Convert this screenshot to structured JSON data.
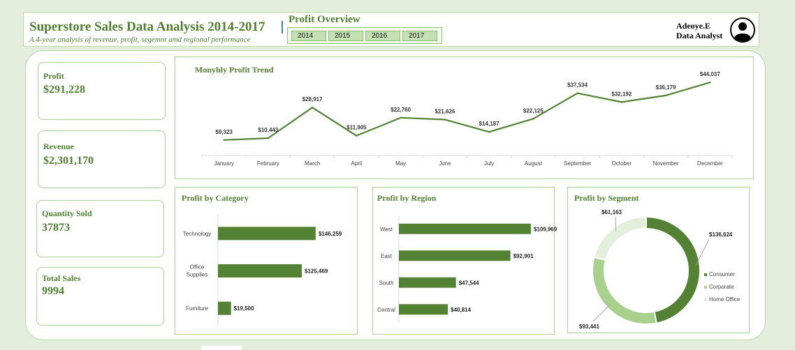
{
  "header": {
    "title": "Superstore Sales Data Analysis 2014-2017",
    "subtitle": "A 4-year analysis of revenue, profit, segemnt amd regional performance",
    "overview_title": "Profit Overview",
    "year_tabs": [
      "2014",
      "2015",
      "2016",
      "2017"
    ],
    "analyst_name": "Adeoye.E",
    "analyst_role": "Data Analyst",
    "avatar_icon": "user-avatar-icon"
  },
  "kpis": [
    {
      "label": "Profit",
      "value": "$291,228"
    },
    {
      "label": "Revenue",
      "value": "$2,301,170"
    },
    {
      "label": "Quantity Sold",
      "value": "37873"
    },
    {
      "label": "Total Sales",
      "value": "9994"
    }
  ],
  "colors": {
    "accent": "#548235",
    "light_green": "#a9d18e",
    "pale_green": "#e2efda",
    "background": "#e3efdc"
  },
  "chart_data": [
    {
      "type": "line",
      "title": "Monyhly Profit Trend",
      "categories": [
        "January",
        "February",
        "March",
        "April",
        "May",
        "June",
        "July",
        "August",
        "September",
        "October",
        "November",
        "December"
      ],
      "values": [
        9323,
        10443,
        28917,
        11905,
        22760,
        21626,
        14187,
        22125,
        37534,
        32192,
        36179,
        44037
      ],
      "data_labels": [
        "$9,323",
        "$10,443",
        "$28,917",
        "$11,905",
        "$22,760",
        "$21,626",
        "$14,187",
        "$22,125",
        "$37,534",
        "$32,192",
        "$36,179",
        "$44,037"
      ],
      "ylim": [
        0,
        50000
      ],
      "grid": false,
      "legend": "none"
    },
    {
      "type": "bar",
      "orientation": "horizontal",
      "title": "Profit by Category",
      "categories": [
        "Technology",
        "Office Supplies",
        "Furniture"
      ],
      "values": [
        146259,
        125469,
        19500
      ],
      "data_labels": [
        "$146,259",
        "$125,469",
        "$19,500"
      ],
      "xlim": [
        0,
        160000
      ]
    },
    {
      "type": "bar",
      "orientation": "horizontal",
      "title": "Profit by Region",
      "categories": [
        "West",
        "East",
        "South",
        "Central"
      ],
      "values": [
        109969,
        92901,
        47544,
        40814
      ],
      "data_labels": [
        "$109,969",
        "$92,901",
        "$47,544",
        "$40,814"
      ],
      "xlim": [
        0,
        110000
      ]
    },
    {
      "type": "pie",
      "variant": "donut",
      "title": "Profit by Segment",
      "categories": [
        "Consumer",
        "Corporate",
        "Home Office"
      ],
      "values": [
        136624,
        93441,
        61163
      ],
      "data_labels": [
        "$136,624",
        "$93,441",
        "$61,163"
      ],
      "colors": [
        "#548235",
        "#a9d18e",
        "#e2efda"
      ],
      "legend": "right"
    }
  ]
}
